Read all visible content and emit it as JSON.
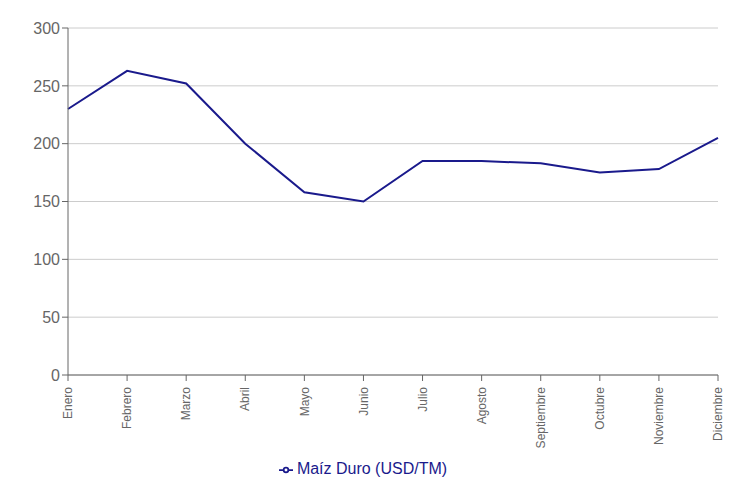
{
  "chart_data": {
    "type": "line",
    "categories": [
      "Enero",
      "Febrero",
      "Marzo",
      "Abril",
      "Mayo",
      "Junio",
      "Julio",
      "Agosto",
      "Septiembre",
      "Octubre",
      "Noviembre",
      "Diciembre"
    ],
    "series": [
      {
        "name": "Maíz Duro (USD/TM)",
        "color": "#1a1a8c",
        "values": [
          230,
          263,
          252,
          200,
          158,
          150,
          185,
          185,
          183,
          175,
          178,
          205
        ]
      }
    ],
    "ylim": [
      0,
      300
    ],
    "yticks": [
      0,
      50,
      100,
      150,
      200,
      250,
      300
    ],
    "grid": true,
    "legend": "bottom"
  }
}
